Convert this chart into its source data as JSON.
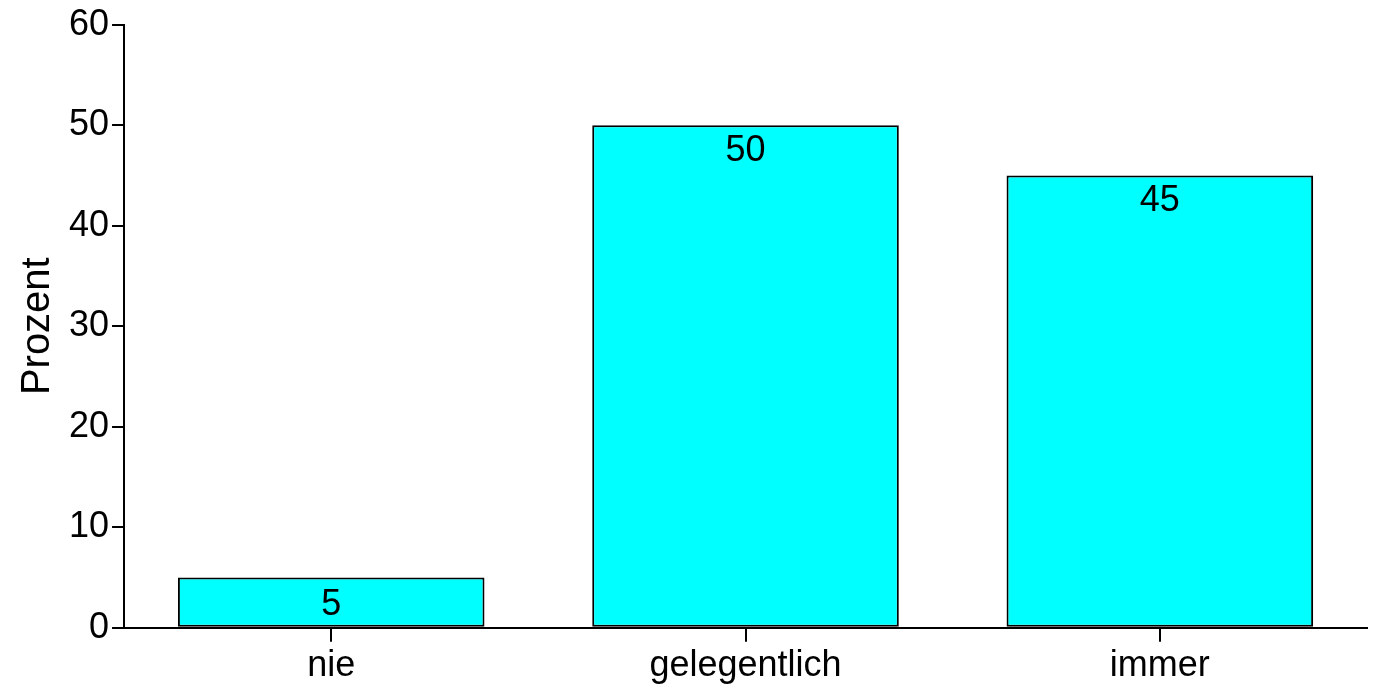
{
  "chart_data": {
    "type": "bar",
    "ylabel": "Prozent",
    "categories": [
      "nie",
      "gelegentlich",
      "immer"
    ],
    "values": [
      5,
      50,
      45
    ],
    "color": "#00ffff",
    "ylim": [
      0,
      60
    ],
    "yticks": [
      0,
      10,
      20,
      30,
      40,
      50,
      60
    ],
    "grid": false,
    "legend": false,
    "data_labels": true
  }
}
